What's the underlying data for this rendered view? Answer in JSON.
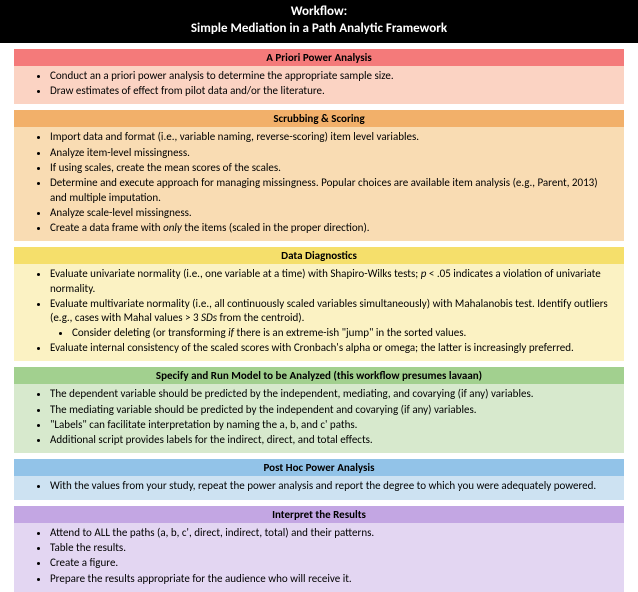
{
  "header": {
    "line1": "Workflow:",
    "line2": "Simple Mediation in a Path Analytic Framework"
  },
  "sections": [
    {
      "title": "A Priori Power Analysis",
      "head_bg": "#f47a7a",
      "body_bg": "#fbd3c3",
      "items": [
        {
          "text": "Conduct an a priori power analysis to determine the appropriate sample size."
        },
        {
          "text": "Draw estimates of effect from pilot data and/or the literature."
        }
      ]
    },
    {
      "title": "Scrubbing & Scoring",
      "head_bg": "#f2b06a",
      "body_bg": "#f9dcb3",
      "items": [
        {
          "text": "Import data and format (i.e., variable naming, reverse-scoring) item level variables."
        },
        {
          "text": "Analyze item-level missingness."
        },
        {
          "text": "If using scales, create the mean scores of the scales."
        },
        {
          "text": "Determine and execute approach for managing missingness. Popular choices are available item analysis (e.g., Parent, 2013) and multiple imputation."
        },
        {
          "text": "Analyze scale-level missingness."
        },
        {
          "html": "Create a data frame with <em>only</em> the items (scaled in the proper direction)."
        }
      ]
    },
    {
      "title": "Data Diagnostics",
      "head_bg": "#f5df6b",
      "body_bg": "#fbf2c3",
      "items": [
        {
          "html": "Evaluate univariate normality (i.e., one variable at a time) with Shapiro-Wilks tests; <em>p</em> &lt; .05 indicates a violation of univariate normality."
        },
        {
          "html": "Evaluate multivariate normality (i.e., all continuously scaled variables simultaneously) with Mahalanobis test. Identify outliers (e.g., cases with Mahal values &gt; 3 <em>SDs</em> from the centroid).",
          "sub": [
            {
              "html": "Consider deleting (or transforming <em>if</em> there is an extreme-ish &quot;jump&quot; in the sorted values."
            }
          ]
        },
        {
          "text": "Evaluate internal consistency of the scaled scores with Cronbach's alpha or omega; the latter is increasingly preferred."
        }
      ]
    },
    {
      "title": "Specify and Run Model to be Analyzed (this workflow presumes lavaan)",
      "head_bg": "#a2d08f",
      "body_bg": "#d7e9cd",
      "items": [
        {
          "text": "The dependent variable should be predicted by the independent, mediating, and covarying (if any) variables."
        },
        {
          "text": "The mediating variable should be predicted by the independent and covarying (if any) variables."
        },
        {
          "text": "\"Labels\" can facilitate interpretation by naming the a, b, and c' paths."
        },
        {
          "text": "Additional script provides labels for the indirect, direct, and total effects."
        }
      ]
    },
    {
      "title": "Post Hoc Power Analysis",
      "head_bg": "#92c3e8",
      "body_bg": "#cde2f2",
      "items": [
        {
          "text": "With the values from your study, repeat the power analysis and report the degree to which you were adequately powered."
        }
      ]
    },
    {
      "title": "Interpret the Results",
      "head_bg": "#c3a6e3",
      "body_bg": "#e3d6f2",
      "items": [
        {
          "text": "Attend to ALL the paths (a, b, c', direct, indirect, total) and their patterns."
        },
        {
          "text": "Table the results."
        },
        {
          "text": "Create a figure."
        },
        {
          "text": "Prepare the results appropriate for the audience who will receive it."
        }
      ]
    }
  ]
}
